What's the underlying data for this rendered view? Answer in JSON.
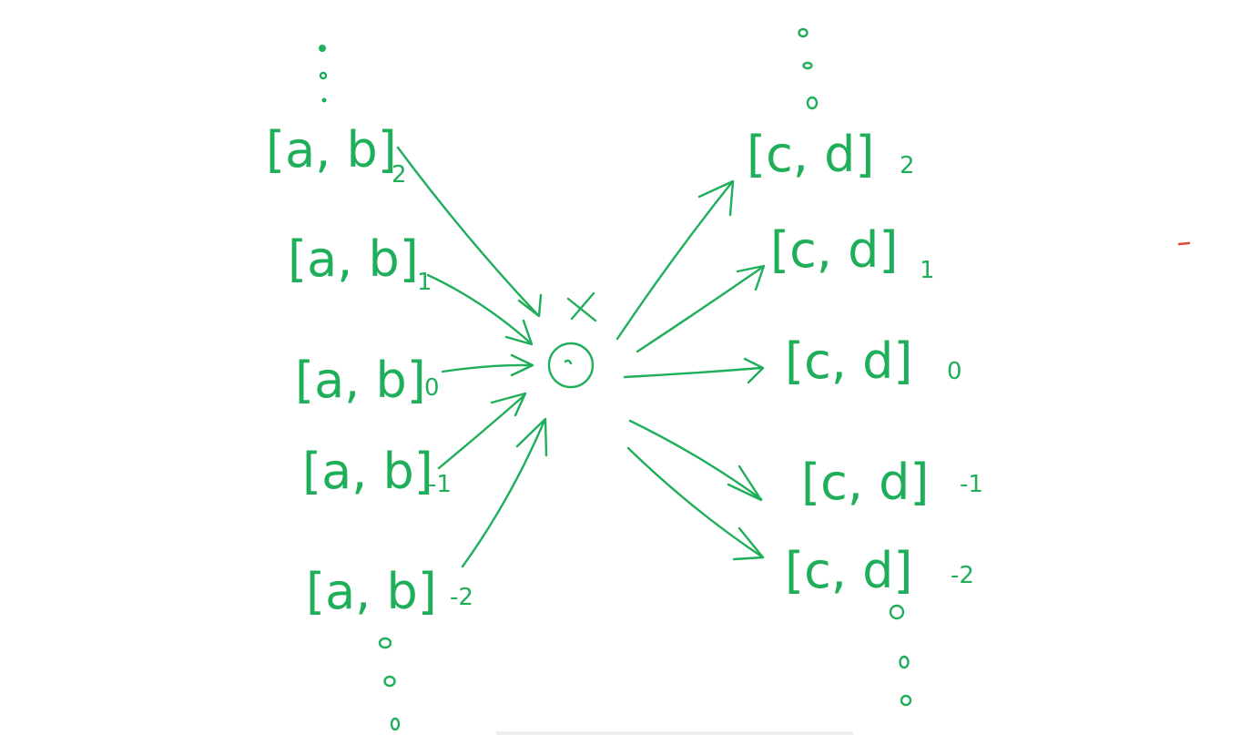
{
  "colors": {
    "ink": "#1fae5a",
    "stray_mark": "#e0452f",
    "background": "#ffffff"
  },
  "center": {
    "operator": "⊙",
    "marker": "×"
  },
  "inputs": [
    {
      "text": "[a, b]",
      "sub": "2"
    },
    {
      "text": "[a, b]",
      "sub": "1"
    },
    {
      "text": "[a, b]",
      "sub": "0"
    },
    {
      "text": "[a, b]",
      "sub": "-1"
    },
    {
      "text": "[a, b]",
      "sub": "-2"
    }
  ],
  "outputs": [
    {
      "text": "[c, d]",
      "sub": "2"
    },
    {
      "text": "[c, d]",
      "sub": "1"
    },
    {
      "text": "[c, d]",
      "sub": "0"
    },
    {
      "text": "[c, d]",
      "sub": "-1"
    },
    {
      "text": "[c, d]",
      "sub": "-2"
    }
  ],
  "ellipsis": {
    "dot": "o"
  }
}
